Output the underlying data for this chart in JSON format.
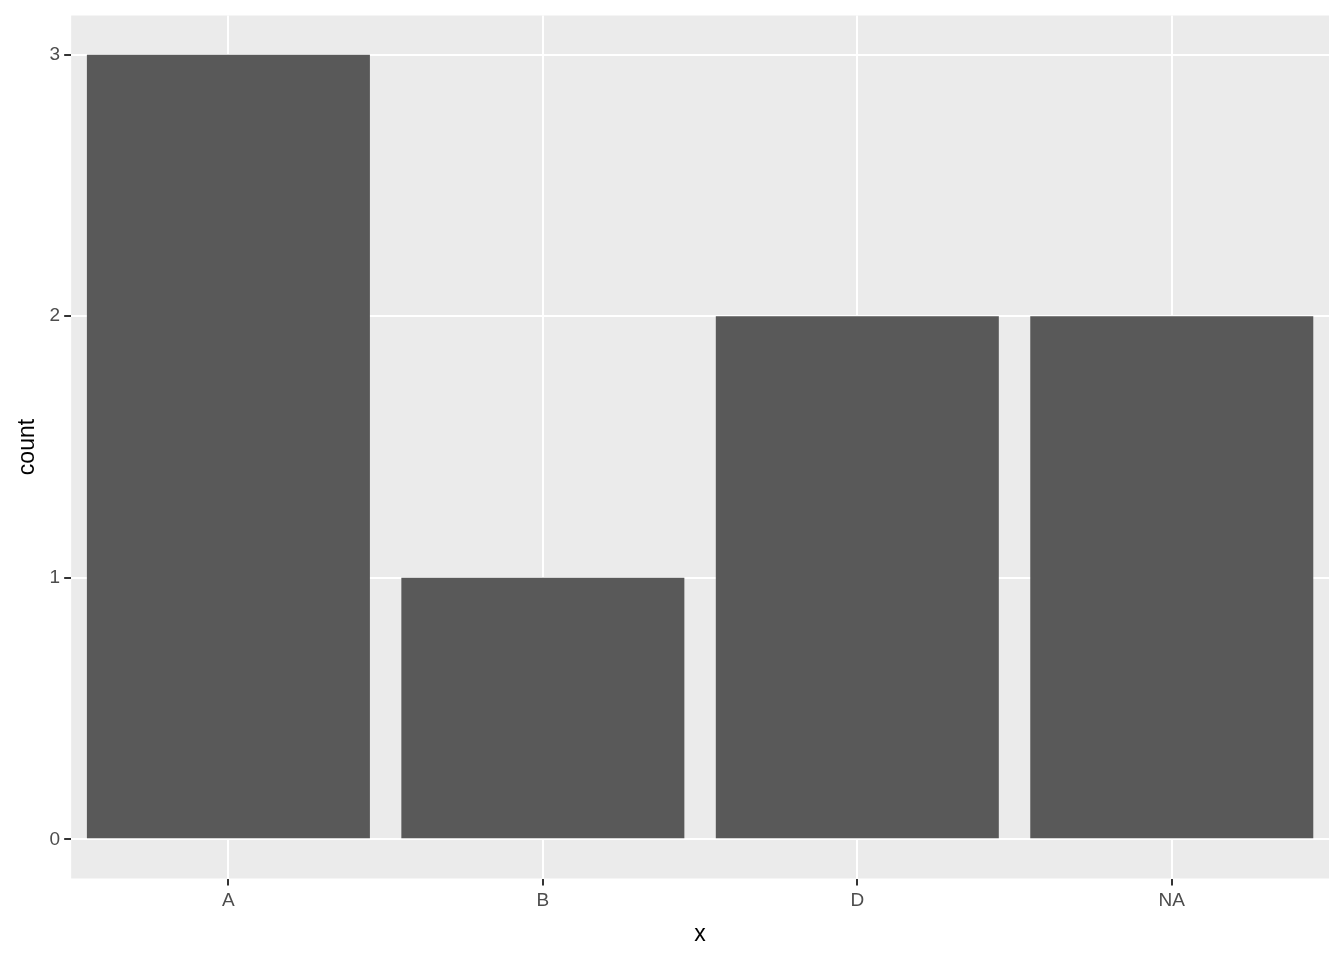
{
  "chart_data": {
    "type": "bar",
    "xlabel": "x",
    "ylabel": "count",
    "categories": [
      "A",
      "B",
      "D",
      "NA"
    ],
    "values": [
      3,
      1,
      2,
      2
    ],
    "color": "#595959",
    "ylim": [
      -0.15,
      3.15
    ],
    "yticks": [
      0,
      1,
      2,
      3
    ],
    "grid": true,
    "legend": false
  }
}
